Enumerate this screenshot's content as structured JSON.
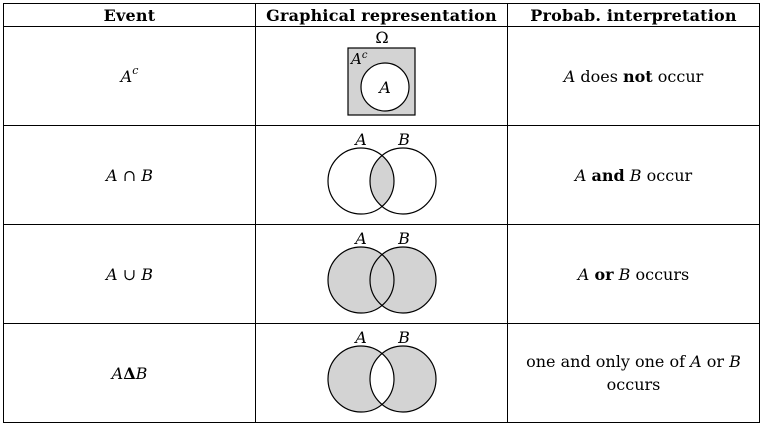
{
  "headers": {
    "event": "Event",
    "graphical": "Graphical representation",
    "interpretation": "Probab. interpretation"
  },
  "rows": [
    {
      "event_base": "A",
      "event_sup": "c",
      "event_op": "",
      "event_rhs": "",
      "diagram": "complement",
      "omega_label": "Ω",
      "ac_label_base": "A",
      "ac_label_sup": "c",
      "circle_label": "A",
      "interp": {
        "var1": "A",
        "pre": " does ",
        "bold": "not",
        "post": " occur",
        "var2": "",
        "tail": ""
      }
    },
    {
      "event_base": "A",
      "event_sup": "",
      "event_op": "∩",
      "event_rhs": "B",
      "diagram": "intersection",
      "label_a": "A",
      "label_b": "B",
      "interp": {
        "var1": "A",
        "pre": " ",
        "bold": "and",
        "post": " ",
        "var2": "B",
        "tail": " occur"
      }
    },
    {
      "event_base": "A",
      "event_sup": "",
      "event_op": "∪",
      "event_rhs": "B",
      "diagram": "union",
      "label_a": "A",
      "label_b": "B",
      "interp": {
        "var1": "A",
        "pre": " ",
        "bold": "or",
        "post": " ",
        "var2": "B",
        "tail": " occurs"
      }
    },
    {
      "event_base": "A",
      "event_sup": "",
      "event_op": "Δ",
      "event_rhs": "B",
      "diagram": "symdiff",
      "label_a": "A",
      "label_b": "B",
      "interp": {
        "line1_pre": "one and only one of ",
        "var1": "A",
        "mid": " or ",
        "var2": "B",
        "line2": "occurs"
      }
    }
  ],
  "colors": {
    "shade": "#d3d3d3",
    "stroke": "#000000"
  }
}
